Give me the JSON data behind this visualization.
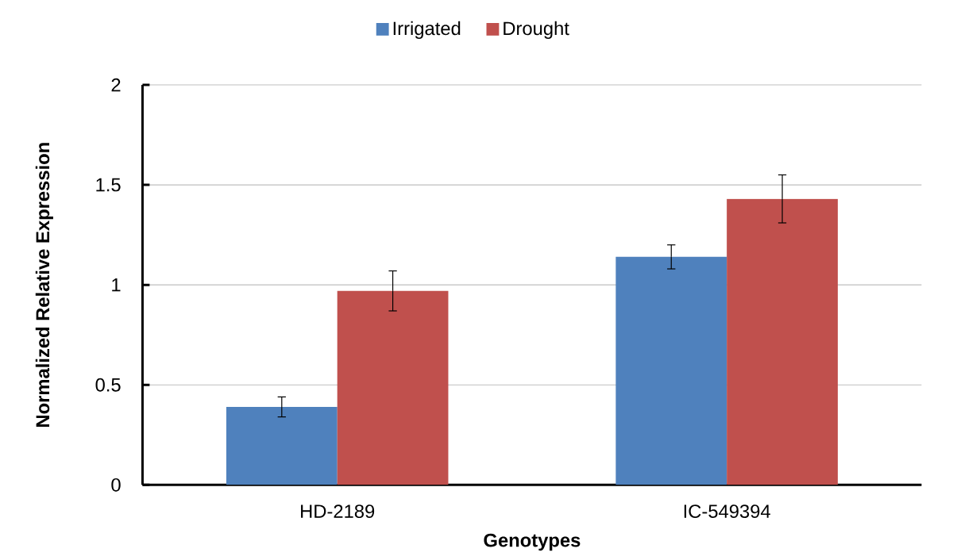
{
  "chart_data": {
    "type": "bar",
    "xlabel": "Genotypes",
    "ylabel": "Normalized Relative Expression",
    "categories": [
      "HD-2189",
      "IC-549394"
    ],
    "series": [
      {
        "name": "Irrigated",
        "color": "#4f81bd",
        "values": [
          0.39,
          1.14
        ],
        "errors": [
          0.05,
          0.06
        ]
      },
      {
        "name": "Drought",
        "color": "#c0504d",
        "values": [
          0.97,
          1.43
        ],
        "errors": [
          0.1,
          0.12
        ]
      }
    ],
    "ylim": [
      0,
      2
    ],
    "yticks": [
      0,
      0.5,
      1,
      1.5,
      2
    ],
    "grid": "y",
    "legend": "top"
  }
}
